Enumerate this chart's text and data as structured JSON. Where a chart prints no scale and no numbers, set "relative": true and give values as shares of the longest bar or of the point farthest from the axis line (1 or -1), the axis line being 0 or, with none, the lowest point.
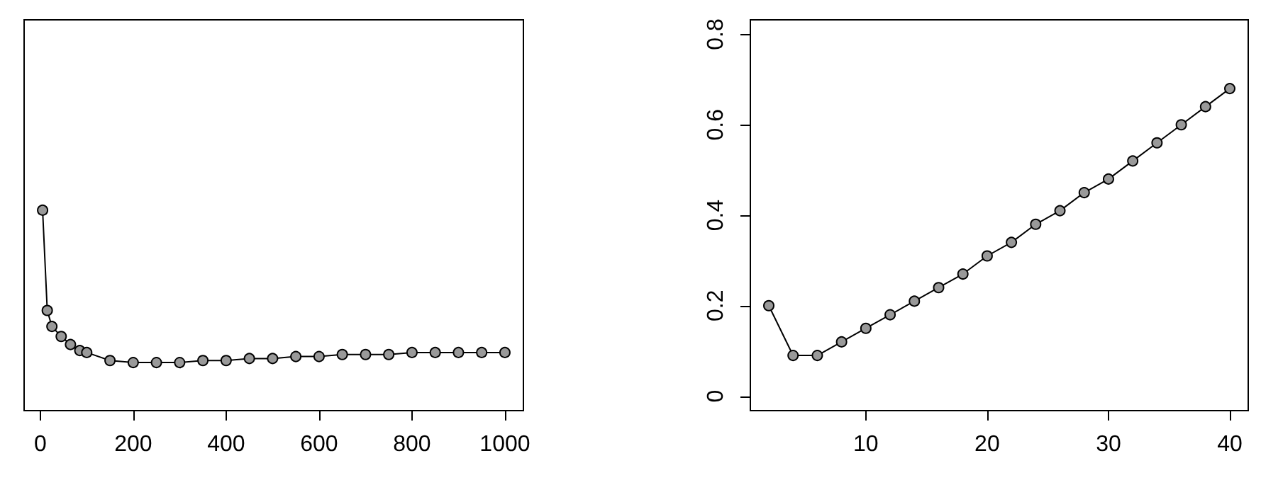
{
  "chart_data": [
    {
      "type": "line",
      "relative": true,
      "marker": "circle",
      "line_style": "solid",
      "xlim": [
        -34.8,
        1039.8
      ],
      "xticks": [
        0,
        200,
        400,
        600,
        800,
        1000
      ],
      "series": [
        {
          "color": "#000000",
          "x": [
            5,
            15,
            25,
            45,
            65,
            85,
            100,
            150,
            200,
            250,
            300,
            350,
            400,
            450,
            500,
            550,
            600,
            650,
            700,
            750,
            800,
            850,
            900,
            950,
            1000
          ],
          "values": [
            1,
            0.5,
            0.42,
            0.37,
            0.33,
            0.3,
            0.29,
            0.25,
            0.24,
            0.24,
            0.24,
            0.25,
            0.25,
            0.26,
            0.26,
            0.27,
            0.27,
            0.28,
            0.28,
            0.28,
            0.29,
            0.29,
            0.29,
            0.29,
            0.29
          ]
        }
      ]
    },
    {
      "type": "line",
      "marker": "circle",
      "line_style": "solid",
      "xlim": [
        0.48,
        41.52
      ],
      "xticks": [
        10,
        20,
        30,
        40
      ],
      "ylim": [
        -0.032,
        0.832
      ],
      "yticks": [
        0.0,
        0.2,
        0.4,
        0.6,
        0.8
      ],
      "series": [
        {
          "color": "#000000",
          "x": [
            2,
            4,
            6,
            8,
            10,
            12,
            14,
            16,
            18,
            20,
            22,
            24,
            26,
            28,
            30,
            32,
            34,
            36,
            38,
            40
          ],
          "values": [
            0.2,
            0.09,
            0.09,
            0.12,
            0.15,
            0.18,
            0.21,
            0.24,
            0.27,
            0.31,
            0.34,
            0.38,
            0.41,
            0.45,
            0.48,
            0.52,
            0.56,
            0.6,
            0.64,
            0.68
          ]
        }
      ]
    }
  ]
}
